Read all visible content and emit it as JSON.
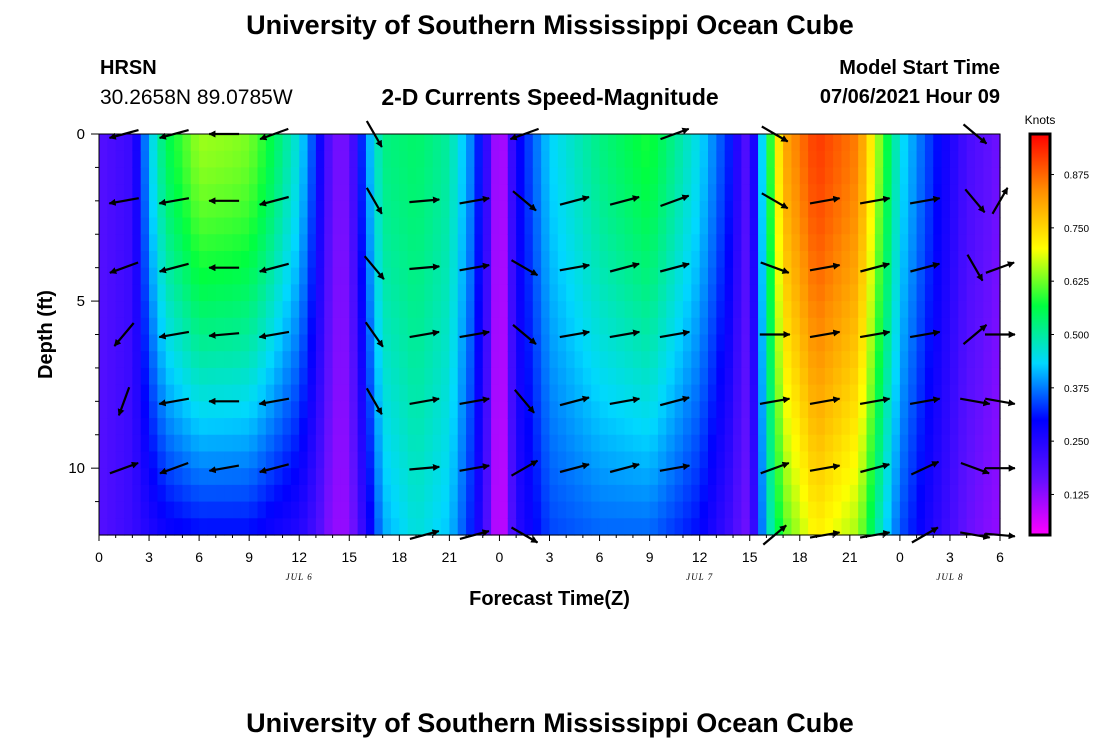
{
  "header": {
    "title": "University of Southern Mississippi Ocean Cube",
    "station": "HRSN",
    "coordinates": "30.2658N  89.0785W",
    "subtitle": "2-D Currents Speed-Magnitude",
    "start_label": "Model Start Time",
    "start_value": "07/06/2021 Hour 09"
  },
  "footer": {
    "title": "University of Southern Mississippi Ocean Cube"
  },
  "colors": {
    "colormap": [
      "#ff00ff",
      "#6010ff",
      "#0000ff",
      "#00d8ff",
      "#00ff40",
      "#ffff00",
      "#ff9000",
      "#ff0000"
    ]
  },
  "chart_data": {
    "type": "heatmap",
    "title": "2-D Currents Speed-Magnitude",
    "xlabel": "Forecast Time(Z)",
    "ylabel": "Depth (ft)",
    "x_ticks": [
      "0",
      "3",
      "6",
      "9",
      "12",
      "15",
      "18",
      "21",
      "0",
      "3",
      "6",
      "9",
      "12",
      "15",
      "18",
      "21",
      "0",
      "3",
      "6"
    ],
    "x_tick_hours": [
      0,
      3,
      6,
      9,
      12,
      15,
      18,
      21,
      24,
      27,
      30,
      33,
      36,
      39,
      42,
      45,
      48,
      51,
      54
    ],
    "x_range_hours": [
      0,
      54
    ],
    "date_labels": [
      {
        "text": "JUL 6",
        "hour": 12
      },
      {
        "text": "JUL 7",
        "hour": 36
      },
      {
        "text": "JUL 8",
        "hour": 51
      }
    ],
    "y_ticks": [
      "0",
      "5",
      "10"
    ],
    "y_tick_values": [
      0,
      5,
      10
    ],
    "y_range_ft": [
      0,
      12
    ],
    "colorbar": {
      "label": "Knots",
      "ticks": [
        "0.875",
        "0.750",
        "0.625",
        "0.500",
        "0.375",
        "0.250",
        "0.125"
      ],
      "tick_values": [
        0.875,
        0.75,
        0.625,
        0.5,
        0.375,
        0.25,
        0.125
      ],
      "range": [
        0.03,
        0.97
      ]
    },
    "profile_hours": [
      0,
      2,
      3,
      4,
      6,
      8,
      9,
      10,
      12,
      13,
      14,
      15,
      16,
      17,
      19,
      21,
      22.5,
      23.5,
      24,
      25,
      27,
      30,
      33,
      36,
      38,
      38.5,
      39,
      40,
      41,
      43,
      45.5,
      47,
      48,
      50,
      52,
      54
    ],
    "surface_speed": [
      0.18,
      0.22,
      0.42,
      0.55,
      0.65,
      0.64,
      0.63,
      0.58,
      0.45,
      0.32,
      0.15,
      0.15,
      0.38,
      0.52,
      0.54,
      0.5,
      0.36,
      0.18,
      0.05,
      0.28,
      0.43,
      0.52,
      0.58,
      0.44,
      0.3,
      0.2,
      0.18,
      0.52,
      0.8,
      0.92,
      0.85,
      0.6,
      0.45,
      0.32,
      0.2,
      0.15
    ],
    "bottom_speed": [
      0.18,
      0.22,
      0.25,
      0.28,
      0.3,
      0.3,
      0.3,
      0.28,
      0.25,
      0.2,
      0.12,
      0.12,
      0.25,
      0.4,
      0.46,
      0.42,
      0.3,
      0.15,
      0.04,
      0.24,
      0.34,
      0.36,
      0.36,
      0.3,
      0.2,
      0.16,
      0.15,
      0.45,
      0.6,
      0.72,
      0.65,
      0.45,
      0.35,
      0.25,
      0.16,
      0.12
    ],
    "vector_depths_ft": [
      0,
      2,
      4,
      6,
      8,
      10,
      12
    ],
    "vector_columns": [
      {
        "hour": 1.5,
        "angles_deg": [
          195,
          190,
          200,
          230,
          250,
          20,
          null
        ]
      },
      {
        "hour": 4.5,
        "angles_deg": [
          195,
          190,
          195,
          190,
          190,
          200,
          null
        ]
      },
      {
        "hour": 7.5,
        "angles_deg": [
          180,
          180,
          180,
          185,
          180,
          190,
          null
        ]
      },
      {
        "hour": 10.5,
        "angles_deg": [
          200,
          195,
          195,
          190,
          190,
          195,
          null
        ]
      },
      {
        "hour": 16.5,
        "angles_deg": [
          300,
          300,
          310,
          305,
          300,
          null,
          null
        ]
      },
      {
        "hour": 19.5,
        "angles_deg": [
          null,
          5,
          5,
          10,
          10,
          5,
          15
        ]
      },
      {
        "hour": 22.5,
        "angles_deg": [
          null,
          10,
          10,
          10,
          10,
          10,
          15
        ]
      },
      {
        "hour": 25.5,
        "angles_deg": [
          200,
          320,
          330,
          320,
          310,
          30,
          330
        ]
      },
      {
        "hour": 28.5,
        "angles_deg": [
          null,
          15,
          10,
          10,
          15,
          15,
          null
        ]
      },
      {
        "hour": 31.5,
        "angles_deg": [
          null,
          15,
          15,
          10,
          10,
          15,
          null
        ]
      },
      {
        "hour": 34.5,
        "angles_deg": [
          20,
          20,
          15,
          10,
          15,
          10,
          null
        ]
      },
      {
        "hour": 40.5,
        "angles_deg": [
          330,
          330,
          340,
          0,
          10,
          20,
          40
        ]
      },
      {
        "hour": 43.5,
        "angles_deg": [
          null,
          10,
          10,
          10,
          10,
          10,
          10
        ]
      },
      {
        "hour": 46.5,
        "angles_deg": [
          null,
          10,
          15,
          10,
          10,
          15,
          10
        ]
      },
      {
        "hour": 49.5,
        "angles_deg": [
          null,
          10,
          15,
          10,
          10,
          25,
          30
        ]
      },
      {
        "hour": 52.5,
        "angles_deg": [
          320,
          310,
          300,
          40,
          350,
          340,
          350
        ]
      },
      {
        "hour": 54,
        "angles_deg": [
          null,
          60,
          20,
          0,
          350,
          0,
          355
        ]
      }
    ]
  }
}
